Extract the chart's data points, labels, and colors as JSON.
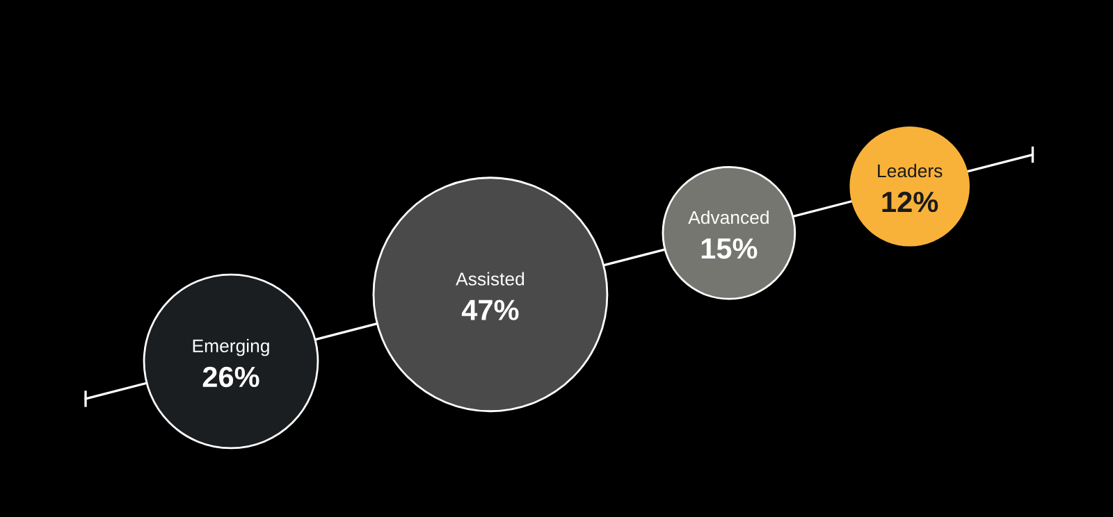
{
  "chart_data": {
    "type": "other",
    "categories": [
      "Emerging",
      "Assisted",
      "Advanced",
      "Leaders"
    ],
    "values": [
      26,
      47,
      15,
      12
    ],
    "value_labels": [
      "26%",
      "47%",
      "15%",
      "12%"
    ],
    "colors": [
      "#1b1e20",
      "#4a4a4a",
      "#75766f",
      "#f8b23a"
    ]
  }
}
